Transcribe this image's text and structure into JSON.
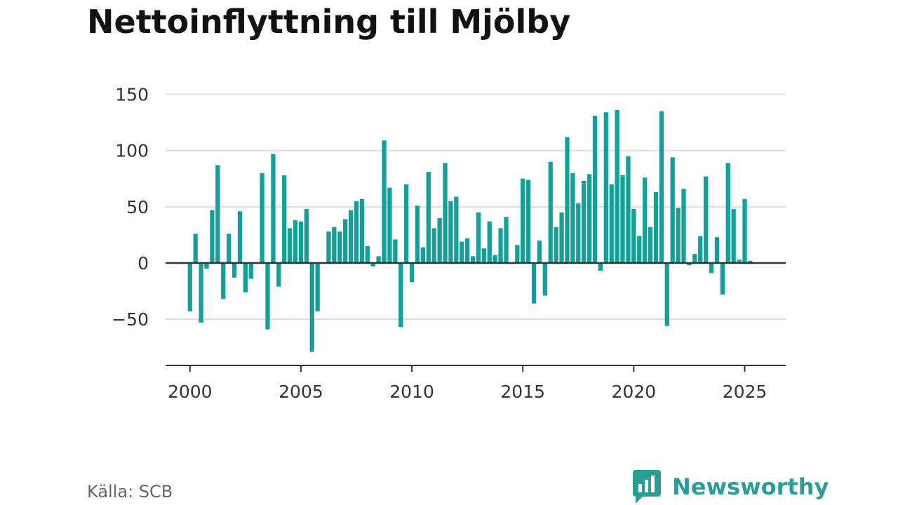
{
  "title": "Nettoinflyttning till Mjölby",
  "source": "Källa: SCB",
  "brand": {
    "name": "Newsworthy",
    "icon": "bar-chart-speech-bubble-icon",
    "color": "#2a9d95"
  },
  "colors": {
    "bar": "#14a098",
    "grid": "#dddddd",
    "zero_line": "#333333",
    "axis": "#333333"
  },
  "chart_data": {
    "type": "bar",
    "title": "Nettoinflyttning till Mjölby",
    "xlabel": "",
    "ylabel": "",
    "ylim": [
      -90,
      150
    ],
    "xlim": [
      1998.9,
      2026.85
    ],
    "yticks": [
      -50,
      0,
      50,
      100,
      150
    ],
    "xticks": [
      2000,
      2005,
      2010,
      2015,
      2020,
      2025
    ],
    "grid": true,
    "x": [
      "2000 Q1",
      "2000 Q2",
      "2000 Q3",
      "2000 Q4",
      "2001 Q1",
      "2001 Q2",
      "2001 Q3",
      "2001 Q4",
      "2002 Q1",
      "2002 Q2",
      "2002 Q3",
      "2002 Q4",
      "2003 Q1",
      "2003 Q2",
      "2003 Q3",
      "2003 Q4",
      "2004 Q1",
      "2004 Q2",
      "2004 Q3",
      "2004 Q4",
      "2005 Q1",
      "2005 Q2",
      "2005 Q3",
      "2005 Q4",
      "2006 Q1",
      "2006 Q2",
      "2006 Q3",
      "2006 Q4",
      "2007 Q1",
      "2007 Q2",
      "2007 Q3",
      "2007 Q4",
      "2008 Q1",
      "2008 Q2",
      "2008 Q3",
      "2008 Q4",
      "2009 Q1",
      "2009 Q2",
      "2009 Q3",
      "2009 Q4",
      "2010 Q1",
      "2010 Q2",
      "2010 Q3",
      "2010 Q4",
      "2011 Q1",
      "2011 Q2",
      "2011 Q3",
      "2011 Q4",
      "2012 Q1",
      "2012 Q2",
      "2012 Q3",
      "2012 Q4",
      "2013 Q1",
      "2013 Q2",
      "2013 Q3",
      "2013 Q4",
      "2014 Q1",
      "2014 Q2",
      "2014 Q3",
      "2014 Q4",
      "2015 Q1",
      "2015 Q2",
      "2015 Q3",
      "2015 Q4",
      "2016 Q1",
      "2016 Q2",
      "2016 Q3",
      "2016 Q4",
      "2017 Q1",
      "2017 Q2",
      "2017 Q3",
      "2017 Q4",
      "2018 Q1",
      "2018 Q2",
      "2018 Q3",
      "2018 Q4",
      "2019 Q1",
      "2019 Q2",
      "2019 Q3",
      "2019 Q4",
      "2020 Q1",
      "2020 Q2",
      "2020 Q3",
      "2020 Q4",
      "2021 Q1",
      "2021 Q2",
      "2021 Q3",
      "2021 Q4",
      "2022 Q1",
      "2022 Q2",
      "2022 Q3",
      "2022 Q4",
      "2023 Q1",
      "2023 Q2",
      "2023 Q3",
      "2023 Q4",
      "2024 Q1",
      "2024 Q2",
      "2024 Q3",
      "2024 Q4",
      "2025 Q1",
      "2025 Q2",
      "2025 Q3"
    ],
    "values": [
      -43,
      26,
      -53,
      -5,
      47,
      87,
      -32,
      26,
      -13,
      46,
      -26,
      -14,
      0,
      80,
      -59,
      97,
      -21,
      78,
      31,
      38,
      37,
      48,
      -79,
      -43,
      0,
      28,
      32,
      28,
      39,
      47,
      55,
      57,
      15,
      -3,
      6,
      109,
      67,
      21,
      -57,
      70,
      -17,
      51,
      14,
      81,
      31,
      40,
      89,
      55,
      59,
      19,
      22,
      6,
      45,
      13,
      37,
      7,
      31,
      41,
      0,
      16,
      75,
      74,
      -36,
      20,
      -29,
      90,
      32,
      45,
      112,
      80,
      53,
      73,
      79,
      131,
      -7,
      134,
      70,
      136,
      78,
      95,
      48,
      24,
      76,
      32,
      63,
      135,
      -56,
      94,
      49,
      66,
      -2,
      8,
      24,
      77,
      -9,
      23,
      -28,
      89,
      48,
      3,
      57,
      2,
      0
    ]
  }
}
